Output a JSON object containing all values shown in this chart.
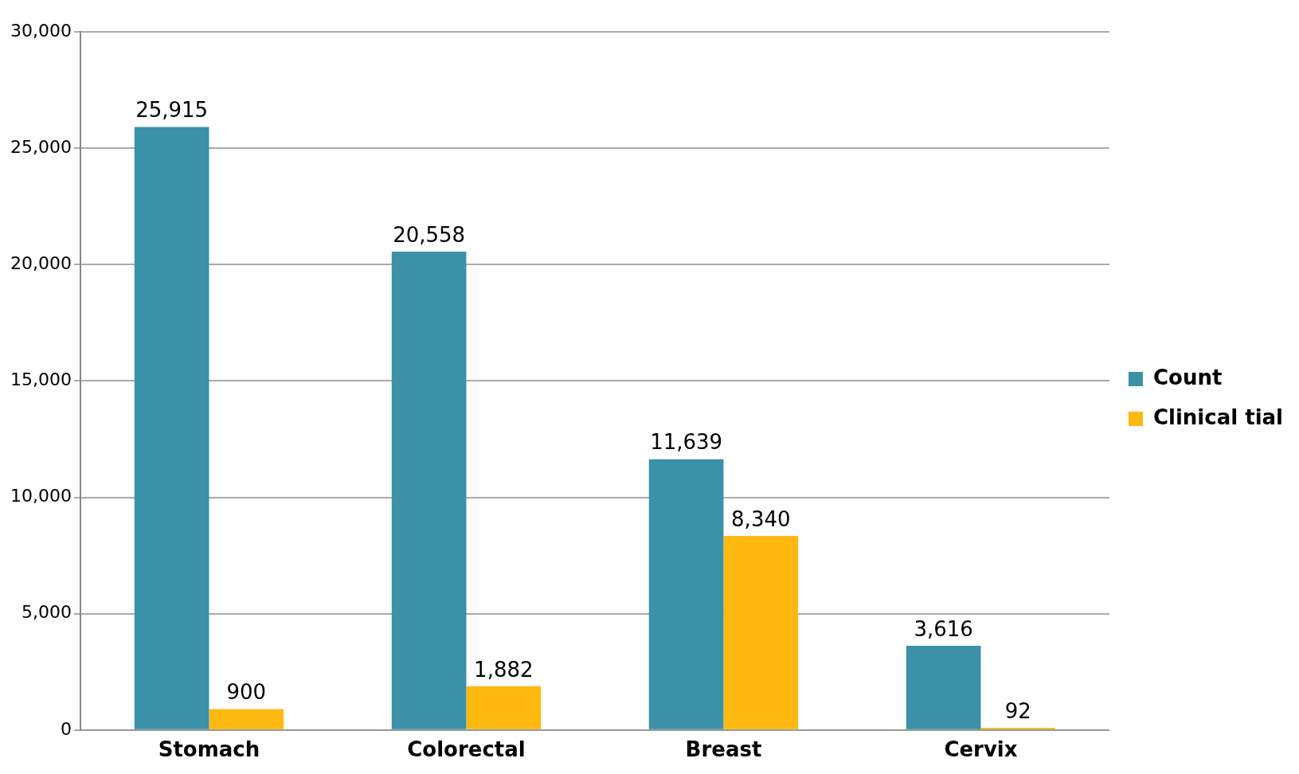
{
  "chart_data": {
    "type": "bar",
    "categories": [
      "Stomach",
      "Colorectal",
      "Breast",
      "Cervix"
    ],
    "series": [
      {
        "name": "Count",
        "color": "#3a91a8",
        "values": [
          25915,
          20558,
          11639,
          3616
        ],
        "value_labels": [
          "25,915",
          "20,558",
          "11,639",
          "3,616"
        ]
      },
      {
        "name": "Clinical tial",
        "color": "#ffb80f",
        "values": [
          900,
          1882,
          8340,
          92
        ],
        "value_labels": [
          "900",
          "1,882",
          "8,340",
          "92"
        ]
      }
    ],
    "ylim": [
      0,
      30000
    ],
    "yticks": [
      {
        "value": 0,
        "label": "0"
      },
      {
        "value": 5000,
        "label": "5,000"
      },
      {
        "value": 10000,
        "label": "10,000"
      },
      {
        "value": 15000,
        "label": "15,000"
      },
      {
        "value": 20000,
        "label": "20,000"
      },
      {
        "value": 25000,
        "label": "25,000"
      },
      {
        "value": 30000,
        "label": "30,000"
      }
    ],
    "grid": "y",
    "legend": "right"
  }
}
